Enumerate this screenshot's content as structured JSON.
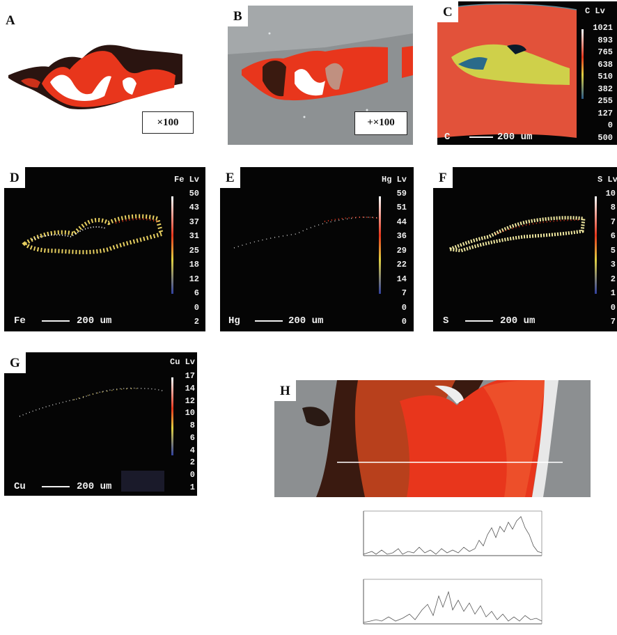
{
  "panels": {
    "A": {
      "letter": "A",
      "magnification": "×100"
    },
    "B": {
      "letter": "B",
      "magnification": "+×100"
    },
    "C": {
      "letter": "C",
      "element": "C",
      "header": "C  Lv",
      "scale": "200 um",
      "levels": [
        "1021",
        "893",
        "765",
        "638",
        "510",
        "382",
        "255",
        "127",
        "0",
        "500"
      ]
    },
    "D": {
      "letter": "D",
      "element": "Fe",
      "header": "Fe Lv",
      "scale": "200 um",
      "levels": [
        "50",
        "43",
        "37",
        "31",
        "25",
        "18",
        "12",
        "6",
        "0",
        "2"
      ]
    },
    "E": {
      "letter": "E",
      "element": "Hg",
      "header": "Hg Lv",
      "scale": "200 um",
      "levels": [
        "59",
        "51",
        "44",
        "36",
        "29",
        "22",
        "14",
        "7",
        "0",
        "0"
      ]
    },
    "F": {
      "letter": "F",
      "element": "S",
      "header": "S  Lv",
      "scale": "200 um",
      "levels": [
        "10",
        "8",
        "7",
        "6",
        "5",
        "3",
        "2",
        "1",
        "0",
        "7"
      ]
    },
    "G": {
      "letter": "G",
      "element": "Cu",
      "header": "Cu Lv",
      "scale": "200 um",
      "levels": [
        "17",
        "14",
        "12",
        "10",
        "8",
        "6",
        "4",
        "2",
        "0",
        "1"
      ]
    },
    "H": {
      "letter": "H"
    }
  },
  "colors": {
    "pigment_red": "#e8361c",
    "dark_brown": "#3a1a10",
    "map_background": "#050505",
    "map_text": "#f0f0f0"
  }
}
